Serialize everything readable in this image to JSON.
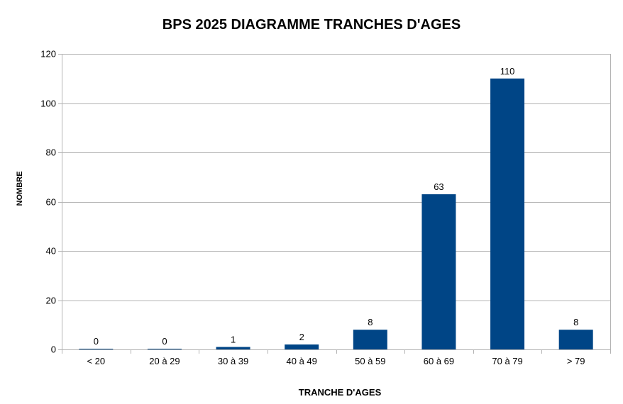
{
  "chart_data": {
    "type": "bar",
    "title": "BPS 2025 DIAGRAMME TRANCHES D'AGES",
    "xlabel": "TRANCHE D'AGES",
    "ylabel": "NOMBRE",
    "categories": [
      "< 20",
      "20 à 29",
      "30 à 39",
      "40 à 49",
      "50 à 59",
      "60 à 69",
      "70 à 79",
      "> 79"
    ],
    "values": [
      0,
      0,
      1,
      2,
      8,
      63,
      110,
      8
    ],
    "data_labels": [
      "0",
      "0",
      "1",
      "2",
      "8",
      "63",
      "110",
      "8"
    ],
    "ylim": [
      0,
      120
    ],
    "yticks": [
      0,
      20,
      40,
      60,
      80,
      100,
      120
    ],
    "grid": true,
    "legend": "none",
    "bar_color": "#004586"
  }
}
